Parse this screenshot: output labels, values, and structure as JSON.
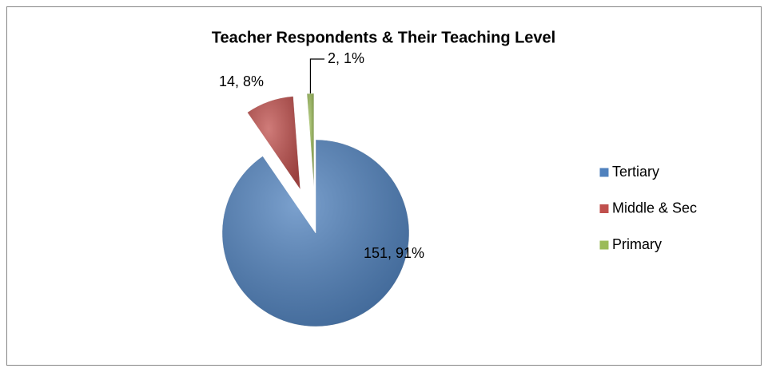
{
  "chart_data": {
    "type": "pie",
    "title": "Teacher Respondents & Their Teaching Level",
    "categories": [
      "Tertiary",
      "Middle & Sec",
      "Primary"
    ],
    "values": [
      151,
      14,
      2
    ],
    "value_labels": [
      "151, 91%",
      "14, 8%",
      "2, 1%"
    ],
    "colors": [
      "#4f81bd",
      "#c0504d",
      "#9bbb59"
    ],
    "legend": "right"
  }
}
